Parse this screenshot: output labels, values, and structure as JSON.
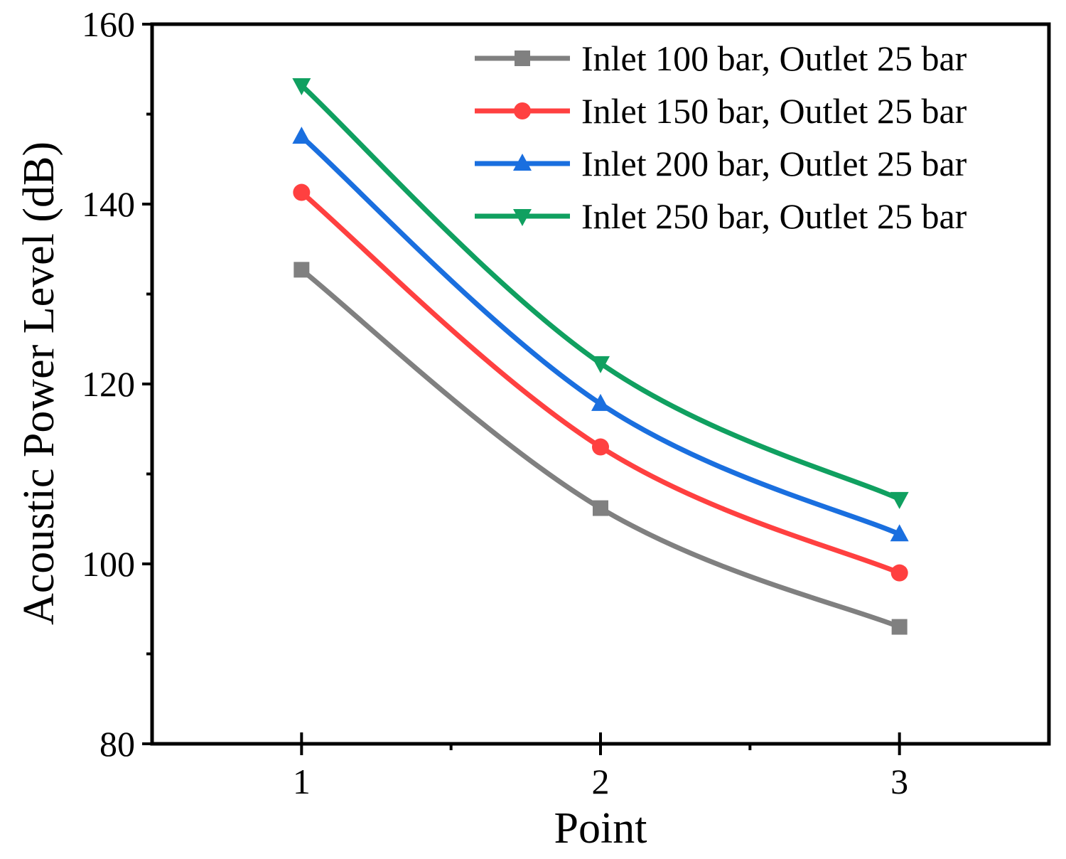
{
  "chart_data": {
    "type": "line",
    "title": "",
    "xlabel": "Point",
    "ylabel": "Acoustic Power Level (dB)",
    "x": [
      1,
      2,
      3
    ],
    "xlim": [
      0.5,
      3.5
    ],
    "ylim": [
      80,
      160
    ],
    "xticks": [
      1,
      2,
      3
    ],
    "xtick_labels": [
      "1",
      "2",
      "3"
    ],
    "yticks": [
      80,
      100,
      120,
      140,
      160
    ],
    "ytick_labels": [
      "80",
      "100",
      "120",
      "140",
      "160"
    ],
    "grid": false,
    "legend_position": "top-right",
    "series": [
      {
        "name": "Inlet 100 bar, Outlet 25 bar",
        "color": "#808080",
        "marker": "square",
        "values": [
          132.7,
          106.2,
          93.0
        ]
      },
      {
        "name": "Inlet 150 bar, Outlet 25 bar",
        "color": "#ff4040",
        "marker": "circle",
        "values": [
          141.3,
          113.0,
          99.0
        ]
      },
      {
        "name": "Inlet 200 bar, Outlet 25 bar",
        "color": "#1a6fdf",
        "marker": "triangle-up",
        "values": [
          147.5,
          117.8,
          103.3
        ]
      },
      {
        "name": "Inlet 250 bar, Outlet 25 bar",
        "color": "#10a060",
        "marker": "triangle-down",
        "values": [
          153.2,
          122.3,
          107.2
        ]
      }
    ]
  }
}
